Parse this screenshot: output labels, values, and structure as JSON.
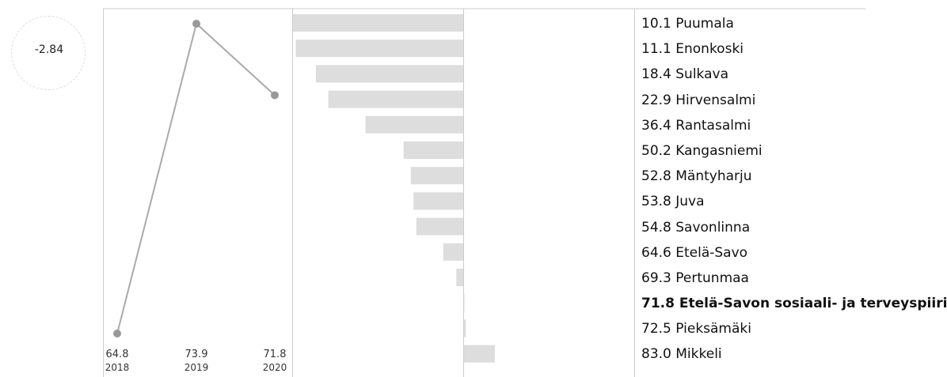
{
  "change": {
    "value": "-2.84"
  },
  "chart_data": [
    {
      "type": "line",
      "x": [
        "2018",
        "2019",
        "2020"
      ],
      "x_value_labels": [
        "64.8",
        "73.9",
        "71.8"
      ],
      "values": [
        64.8,
        73.9,
        71.8
      ],
      "ylim": [
        64.8,
        73.9
      ],
      "grid": false,
      "colors": {
        "line": "#aaaaaa",
        "point": "#999999"
      }
    },
    {
      "type": "bar",
      "orientation": "horizontal",
      "reference_value": 71.8,
      "categories": [
        "Puumala",
        "Enonkoski",
        "Sulkava",
        "Hirvensalmi",
        "Rantasalmi",
        "Kangasniemi",
        "Mäntyharju",
        "Juva",
        "Savonlinna",
        "Etelä-Savo",
        "Pertunmaa",
        "Etelä-Savon sosiaali- ja terveyspiiri",
        "Pieksämäki",
        "Mikkeli"
      ],
      "values": [
        10.1,
        11.1,
        18.4,
        22.9,
        36.4,
        50.2,
        52.8,
        53.8,
        54.8,
        64.6,
        69.3,
        71.8,
        72.5,
        83.0
      ],
      "highlight": "Etelä-Savon sosiaali- ja terveyspiiri",
      "colors": {
        "bar": "#dddddd"
      }
    }
  ],
  "ranking": [
    {
      "label": "10.1 Puumala",
      "highlight": false
    },
    {
      "label": "11.1 Enonkoski",
      "highlight": false
    },
    {
      "label": "18.4 Sulkava",
      "highlight": false
    },
    {
      "label": "22.9 Hirvensalmi",
      "highlight": false
    },
    {
      "label": "36.4 Rantasalmi",
      "highlight": false
    },
    {
      "label": "50.2 Kangasniemi",
      "highlight": false
    },
    {
      "label": "52.8 Mäntyharju",
      "highlight": false
    },
    {
      "label": "53.8 Juva",
      "highlight": false
    },
    {
      "label": "54.8 Savonlinna",
      "highlight": false
    },
    {
      "label": "64.6 Etelä-Savo",
      "highlight": false
    },
    {
      "label": "69.3 Pertunmaa",
      "highlight": false
    },
    {
      "label": "71.8 Etelä-Savon sosiaali- ja terveyspiiri",
      "highlight": true
    },
    {
      "label": "72.5 Pieksämäki",
      "highlight": false
    },
    {
      "label": "83.0 Mikkeli",
      "highlight": false
    }
  ]
}
